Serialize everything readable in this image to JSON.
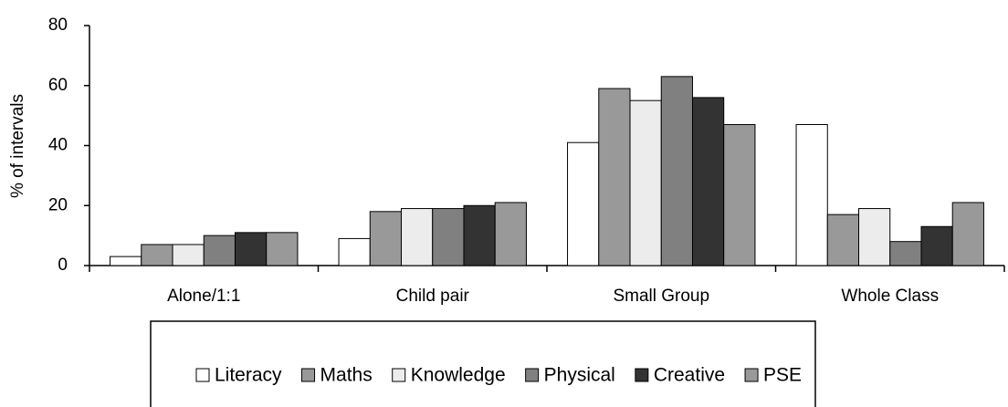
{
  "chart_data": {
    "type": "bar",
    "y_label": "% of intervals",
    "categories": [
      "Alone/1:1",
      "Child pair",
      "Small Group",
      "Whole Class"
    ],
    "series": [
      {
        "name": "Literacy",
        "color": "#ffffff",
        "values": [
          3,
          9,
          41,
          47
        ]
      },
      {
        "name": "Maths",
        "color": "#999999",
        "values": [
          7,
          18,
          59,
          17
        ]
      },
      {
        "name": "Knowledge",
        "color": "#ececec",
        "values": [
          7,
          19,
          55,
          19
        ]
      },
      {
        "name": "Physical",
        "color": "#808080",
        "values": [
          10,
          19,
          63,
          8
        ]
      },
      {
        "name": "Creative",
        "color": "#333333",
        "values": [
          11,
          20,
          56,
          13
        ]
      },
      {
        "name": "PSE",
        "color": "#999999",
        "values": [
          11,
          21,
          47,
          21
        ]
      }
    ],
    "ylim": [
      0,
      80
    ],
    "yticks": [
      0,
      20,
      40,
      60,
      80
    ],
    "grid": false
  }
}
